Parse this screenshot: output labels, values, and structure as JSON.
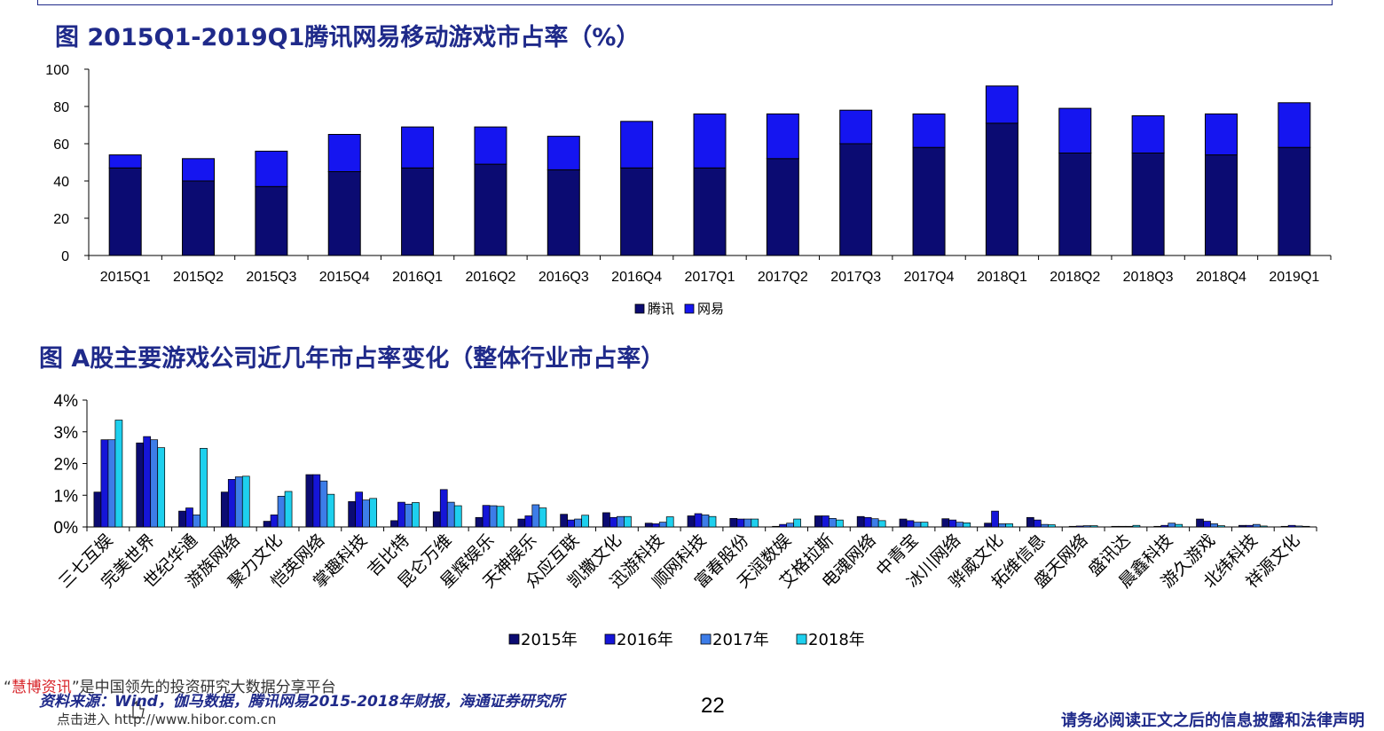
{
  "titles": {
    "chart1": "图 2015Q1-2019Q1腾讯网易移动游戏市占率（%）",
    "chart2": "图  A股主要游戏公司近几年市占率变化（整体行业市占率）"
  },
  "footer": {
    "watermark_brand": "慧博资讯",
    "watermark_open_quote": "“",
    "watermark_rest": "”是中国领先的投资研究大数据分享平台",
    "source": "资料来源：Wind，伽马数据，腾讯网易2015-2018年财报，海通证券研究所",
    "watermark_link": "点击进入 http://www.hibor.com.cn",
    "page_number": "22",
    "disclaimer": "请务必阅读正文之后的信息披露和法律声明"
  },
  "colors": {
    "title": "#1f2a8a",
    "tencent": "#0b0b72",
    "netease": "#1515f0",
    "y2015": "#0b0b72",
    "y2016": "#1515d8",
    "y2017": "#3d7de8",
    "y2018": "#1ed0ee"
  },
  "chart_data": [
    {
      "type": "bar",
      "stacked": true,
      "categories": [
        "2015Q1",
        "2015Q2",
        "2015Q3",
        "2015Q4",
        "2016Q1",
        "2016Q2",
        "2016Q3",
        "2016Q4",
        "2017Q1",
        "2017Q2",
        "2017Q3",
        "2017Q4",
        "2018Q1",
        "2018Q2",
        "2018Q3",
        "2018Q4",
        "2019Q1"
      ],
      "series": [
        {
          "name": "腾讯",
          "values": [
            47,
            40,
            37,
            45,
            47,
            49,
            46,
            47,
            47,
            52,
            60,
            58,
            71,
            55,
            55,
            54,
            58
          ]
        },
        {
          "name": "网易",
          "values": [
            7,
            12,
            19,
            20,
            22,
            20,
            18,
            25,
            29,
            24,
            18,
            18,
            20,
            24,
            20,
            22,
            24
          ]
        }
      ],
      "ylim": [
        0,
        100
      ],
      "yticks": [
        "0",
        "20",
        "40",
        "60",
        "80",
        "100"
      ],
      "legend_position": "bottom"
    },
    {
      "type": "bar",
      "categories": [
        "三七互娱",
        "完美世界",
        "世纪华通",
        "游族网络",
        "聚力文化",
        "恺英网络",
        "掌趣科技",
        "吉比特",
        "昆仑万维",
        "星辉娱乐",
        "天神娱乐",
        "众应互联",
        "凯撒文化",
        "迅游科技",
        "顺网科技",
        "富春股份",
        "天润数娱",
        "艾格拉斯",
        "电魂网络",
        "中青宝",
        "冰川网络",
        "骅威文化",
        "拓维信息",
        "盛天网络",
        "盛讯达",
        "晨鑫科技",
        "游久游戏",
        "北纬科技",
        "祥源文化"
      ],
      "series": [
        {
          "name": "2015年",
          "values": [
            1.1,
            2.65,
            0.5,
            1.1,
            0.18,
            1.65,
            0.8,
            0.2,
            0.48,
            0.3,
            0.25,
            0.4,
            0.45,
            0.12,
            0.35,
            0.27,
            0.02,
            0.35,
            0.33,
            0.25,
            0.26,
            0.12,
            0.3,
            0.02,
            0.02,
            0.02,
            0.25,
            0.05,
            0.02
          ]
        },
        {
          "name": "2016年",
          "values": [
            2.75,
            2.85,
            0.6,
            1.5,
            0.38,
            1.65,
            1.1,
            0.78,
            1.18,
            0.68,
            0.35,
            0.22,
            0.3,
            0.1,
            0.42,
            0.25,
            0.08,
            0.35,
            0.3,
            0.2,
            0.22,
            0.5,
            0.22,
            0.03,
            0.02,
            0.05,
            0.18,
            0.05,
            0.05
          ]
        },
        {
          "name": "2017年",
          "values": [
            2.75,
            2.75,
            0.38,
            1.58,
            0.97,
            1.45,
            0.85,
            0.72,
            0.78,
            0.67,
            0.7,
            0.25,
            0.33,
            0.15,
            0.38,
            0.25,
            0.12,
            0.27,
            0.26,
            0.15,
            0.15,
            0.1,
            0.08,
            0.04,
            0.02,
            0.12,
            0.1,
            0.08,
            0.03
          ]
        },
        {
          "name": "2018年",
          "values": [
            3.37,
            2.5,
            2.48,
            1.6,
            1.12,
            1.03,
            0.9,
            0.77,
            0.67,
            0.65,
            0.6,
            0.37,
            0.33,
            0.32,
            0.33,
            0.25,
            0.25,
            0.22,
            0.2,
            0.15,
            0.13,
            0.1,
            0.07,
            0.04,
            0.05,
            0.08,
            0.04,
            0.03,
            0.02
          ]
        }
      ],
      "ylim": [
        0,
        4
      ],
      "yticks": [
        "0%",
        "1%",
        "2%",
        "3%",
        "4%"
      ],
      "legend_position": "bottom"
    }
  ]
}
